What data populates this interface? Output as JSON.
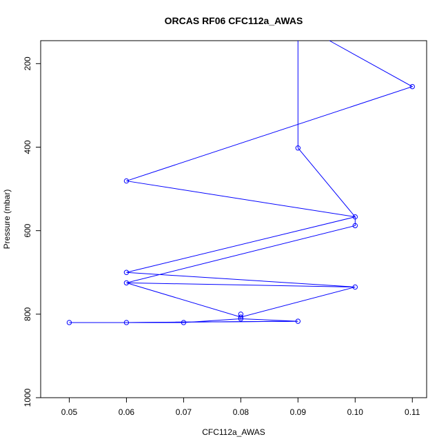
{
  "chart_data": {
    "type": "line",
    "title": "ORCAS RF06 CFC112a_AWAS",
    "xlabel": "CFC112a_AWAS",
    "ylabel": "Pressure (mbar)",
    "xlim": [
      0.045,
      0.1125
    ],
    "ylim": [
      1000,
      145
    ],
    "y_reversed": true,
    "xticks": [
      0.05,
      0.06,
      0.07,
      0.08,
      0.09,
      0.1,
      0.11
    ],
    "xtick_labels": [
      "0.05",
      "0.06",
      "0.07",
      "0.08",
      "0.09",
      "0.10",
      "0.11"
    ],
    "yticks": [
      200,
      400,
      600,
      800,
      1000
    ],
    "ytick_labels": [
      "200",
      "400",
      "600",
      "800",
      "1000"
    ],
    "grid": false,
    "legend": "none",
    "series_color": "#0000ff",
    "x": [
      0.09,
      0.09,
      0.06,
      0.1,
      0.1,
      0.06,
      0.1,
      0.06,
      0.09,
      0.06,
      0.05,
      0.07,
      0.06,
      0.06,
      0.08,
      0.08,
      0.08,
      0.06,
      0.09,
      0.11,
      0.095
    ],
    "y": [
      145,
      402,
      481,
      567,
      588,
      765,
      735,
      700,
      817,
      820,
      820,
      820,
      820,
      820,
      800,
      811,
      807,
      725,
      590,
      255,
      145
    ],
    "lead_in": {
      "x": [
        0.09,
        0.09
      ],
      "y": [
        145,
        402
      ]
    },
    "points": [
      {
        "x": 0.09,
        "y": 402
      },
      {
        "x": 0.06,
        "y": 481
      },
      {
        "x": 0.1,
        "y": 567
      },
      {
        "x": 0.1,
        "y": 588
      },
      {
        "x": 0.06,
        "y": 700
      },
      {
        "x": 0.06,
        "y": 725
      },
      {
        "x": 0.1,
        "y": 735
      },
      {
        "x": 0.08,
        "y": 800
      },
      {
        "x": 0.08,
        "y": 807
      },
      {
        "x": 0.08,
        "y": 811
      },
      {
        "x": 0.09,
        "y": 817
      },
      {
        "x": 0.06,
        "y": 820
      },
      {
        "x": 0.06,
        "y": 820
      },
      {
        "x": 0.05,
        "y": 820
      },
      {
        "x": 0.07,
        "y": 820
      },
      {
        "x": 0.11,
        "y": 255
      }
    ],
    "path": [
      {
        "x": 0.09,
        "y": 145
      },
      {
        "x": 0.09,
        "y": 402
      },
      {
        "x": 0.1,
        "y": 567
      },
      {
        "x": 0.06,
        "y": 481
      },
      {
        "x": 0.11,
        "y": 255
      },
      {
        "x": 0.0955,
        "y": 145
      }
    ],
    "path2": [
      {
        "x": 0.1,
        "y": 567
      },
      {
        "x": 0.06,
        "y": 700
      },
      {
        "x": 0.1,
        "y": 735
      },
      {
        "x": 0.06,
        "y": 725
      },
      {
        "x": 0.1,
        "y": 588
      },
      {
        "x": 0.1,
        "y": 567
      }
    ],
    "path3": [
      {
        "x": 0.06,
        "y": 725
      },
      {
        "x": 0.08,
        "y": 807
      },
      {
        "x": 0.1,
        "y": 735
      }
    ],
    "path4": [
      {
        "x": 0.08,
        "y": 807
      },
      {
        "x": 0.08,
        "y": 811
      },
      {
        "x": 0.09,
        "y": 817
      },
      {
        "x": 0.06,
        "y": 820
      },
      {
        "x": 0.05,
        "y": 820
      },
      {
        "x": 0.07,
        "y": 820
      },
      {
        "x": 0.08,
        "y": 811
      }
    ],
    "path5": [
      {
        "x": 0.09,
        "y": 817
      },
      {
        "x": 0.06,
        "y": 820
      }
    ]
  }
}
